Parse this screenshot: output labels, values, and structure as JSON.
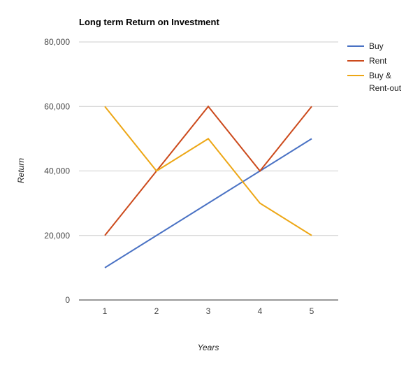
{
  "chart_data": {
    "type": "line",
    "title": "Long term Return on Investment",
    "xlabel": "Years",
    "ylabel": "Return",
    "x": [
      "1",
      "2",
      "3",
      "4",
      "5"
    ],
    "ylim": [
      0,
      80000
    ],
    "y_ticks": [
      "0",
      "20,000",
      "40,000",
      "60,000",
      "80,000"
    ],
    "y_tick_values": [
      0,
      20000,
      40000,
      60000,
      80000
    ],
    "grid": true,
    "legend_position": "right",
    "series": [
      {
        "name": "Buy",
        "color": "#4a72c4",
        "values": [
          10000,
          20000,
          30000,
          40000,
          50000
        ]
      },
      {
        "name": "Rent",
        "color": "#cc4a1c",
        "values": [
          20000,
          40000,
          60000,
          40000,
          60000
        ]
      },
      {
        "name": "Buy & Rent-out",
        "legend_lines": [
          "Buy &",
          "Rent-out"
        ],
        "color": "#eda716",
        "values": [
          60000,
          40000,
          50000,
          30000,
          20000
        ]
      }
    ]
  }
}
